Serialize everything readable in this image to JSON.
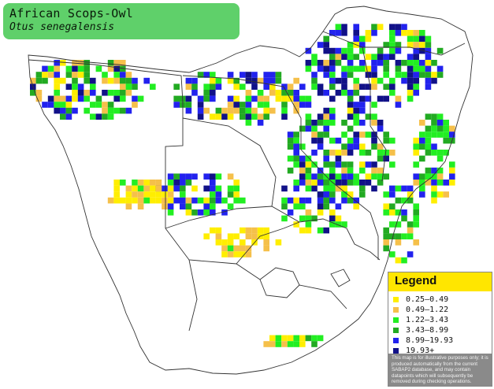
{
  "title": {
    "common_name": "African Scops-Owl",
    "scientific_name": "Otus senegalensis"
  },
  "legend": {
    "heading": "Legend",
    "items": [
      {
        "label": "0.25–0.49",
        "color": "#ffee00"
      },
      {
        "label": "0.49–1.22",
        "color": "#f5c04a"
      },
      {
        "label": "1.22–3.43",
        "color": "#22ee22"
      },
      {
        "label": "3.43–8.99",
        "color": "#22aa22"
      },
      {
        "label": "8.99–19.93",
        "color": "#2222ee"
      },
      {
        "label": "19.93+",
        "color": "#111188"
      }
    ],
    "note": "This map is for illustrative purposes only; it is produced automatically from the current SABAP2 database, and may contain datapoints which will subsequently be removed during checking operations."
  },
  "map": {
    "grid_colors": [
      "#ffee00",
      "#f5c04a",
      "#22ee22",
      "#22aa22",
      "#2222ee",
      "#111188"
    ],
    "water_color": "#ffffff",
    "border_color": "#333333"
  }
}
